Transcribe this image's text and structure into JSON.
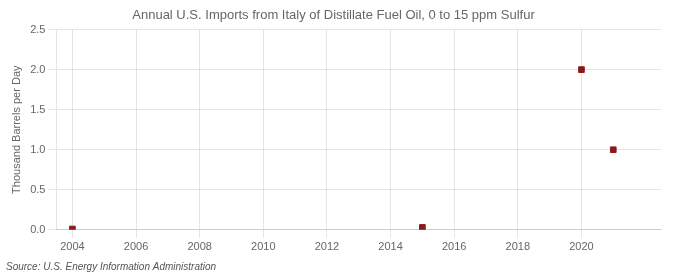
{
  "chart_data": {
    "type": "scatter",
    "title": "Annual U.S. Imports from Italy of Distillate Fuel Oil, 0 to 15 ppm Sulfur",
    "ylabel": "Thousand Barrels per Day",
    "source": "Source: U.S. Energy Information Administration",
    "x": [
      2004,
      2015,
      2020,
      2021
    ],
    "values": [
      0.01,
      0.03,
      2.0,
      1.0
    ],
    "color": "#8b1a1a",
    "marker": "square",
    "xlim": [
      2003.5,
      2022.5
    ],
    "xticks": [
      2004,
      2006,
      2008,
      2010,
      2012,
      2014,
      2016,
      2018,
      2020
    ],
    "ylim": [
      0.0,
      2.5
    ],
    "yticks": [
      {
        "value": 0.0,
        "label": "0.0"
      },
      0.5,
      {
        "value": 1.0,
        "label": "1.0"
      },
      1.5,
      {
        "value": 2.0,
        "label": "2.0"
      },
      2.5
    ],
    "grid": true
  }
}
